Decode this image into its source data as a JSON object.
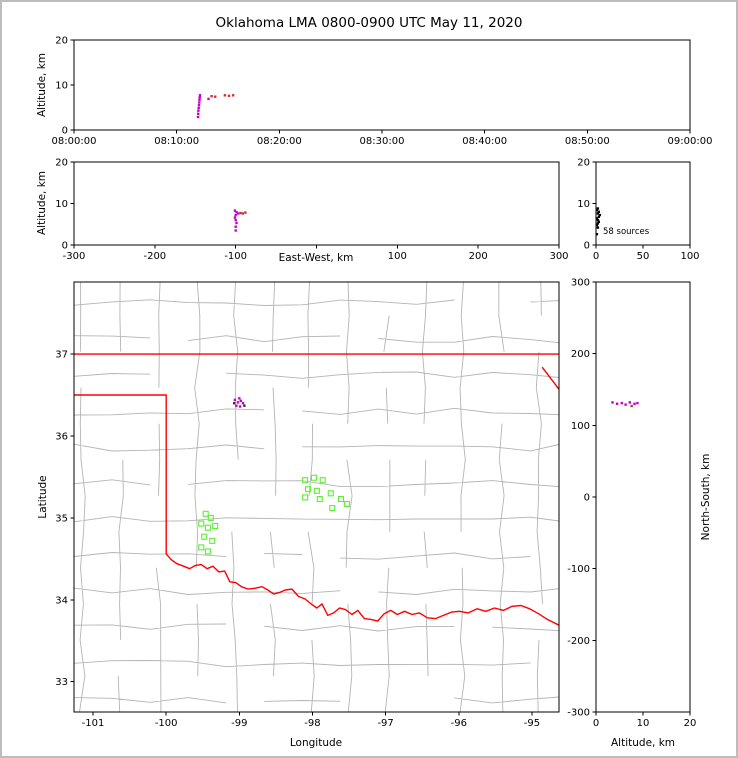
{
  "title": "Oklahoma LMA 0800-0900 UTC May 11, 2020",
  "frame": {
    "border_color": "#bdbdbd",
    "background": "#ffffff"
  },
  "colors": {
    "axis": "#000000",
    "county_line": "#b4b4b4",
    "state_border": "#ff0000",
    "station_marker": "#5dee35",
    "source_primary": "#c800c8",
    "source_secondary": "#cd3333",
    "histogram_point": "#000000"
  },
  "chart_data": [
    {
      "name": "time-height",
      "type": "scatter",
      "ylabel": "Altitude, km",
      "xlim": [
        0,
        60
      ],
      "ylim": [
        0,
        20
      ],
      "yticks": [
        0,
        10,
        20
      ],
      "xticks": [
        {
          "v": 0,
          "label": "08:00:00"
        },
        {
          "v": 10,
          "label": "08:10:00"
        },
        {
          "v": 20,
          "label": "08:20:00"
        },
        {
          "v": 30,
          "label": "08:30:00"
        },
        {
          "v": 40,
          "label": "08:40:00"
        },
        {
          "v": 50,
          "label": "08:50:00"
        },
        {
          "v": 60,
          "label": "09:00:00"
        }
      ],
      "series": [
        {
          "color": "#c800c8",
          "points": [
            [
              12.08,
              2.9
            ],
            [
              12.1,
              3.6
            ],
            [
              12.12,
              4.3
            ],
            [
              12.15,
              4.9
            ],
            [
              12.18,
              5.5
            ],
            [
              12.2,
              6.1
            ],
            [
              12.22,
              6.7
            ],
            [
              12.24,
              7.2
            ],
            [
              12.27,
              7.7
            ],
            [
              13.1,
              6.9
            ]
          ]
        },
        {
          "color": "#cd3333",
          "points": [
            [
              13.4,
              7.5
            ],
            [
              13.75,
              7.4
            ],
            [
              14.7,
              7.7
            ],
            [
              15.1,
              7.6
            ],
            [
              15.5,
              7.7
            ]
          ]
        }
      ]
    },
    {
      "name": "ew-height",
      "type": "scatter",
      "xlabel": "East-West, km",
      "ylabel": "Altitude, km",
      "xlim": [
        -300,
        300
      ],
      "ylim": [
        0,
        20
      ],
      "yticks": [
        0,
        10,
        20
      ],
      "xticks": [
        {
          "v": -300,
          "label": "-300"
        },
        {
          "v": -200,
          "label": "-200"
        },
        {
          "v": -100,
          "label": "-100"
        },
        {
          "v": 0,
          "label": ""
        },
        {
          "v": 100,
          "label": "100"
        },
        {
          "v": 200,
          "label": "200"
        },
        {
          "v": 300,
          "label": "300"
        }
      ],
      "series": [
        {
          "color": "#c800c8",
          "points": [
            [
              -101,
              8.3
            ],
            [
              -99,
              7.9
            ],
            [
              -97,
              7.6
            ],
            [
              -100,
              7.2
            ],
            [
              -101,
              6.6
            ],
            [
              -100,
              6.0
            ],
            [
              -99,
              5.3
            ],
            [
              -100,
              4.4
            ],
            [
              -100,
              3.5
            ]
          ]
        },
        {
          "color": "#cd3333",
          "points": [
            [
              -94,
              7.7
            ],
            [
              -91,
              7.6
            ],
            [
              -88,
              7.8
            ]
          ]
        }
      ]
    },
    {
      "name": "altitude-histogram",
      "type": "scatter",
      "annotation": "58 sources",
      "xlim": [
        0,
        100
      ],
      "ylim": [
        0,
        20
      ],
      "xticks": [
        0,
        50,
        100
      ],
      "yticks": [
        0,
        10,
        20
      ],
      "series": [
        {
          "color": "#000000",
          "points": [
            [
              2,
              8.8
            ],
            [
              1,
              8.4
            ],
            [
              3,
              8.0
            ],
            [
              2,
              7.6
            ],
            [
              4,
              7.2
            ],
            [
              3,
              6.8
            ],
            [
              1,
              6.4
            ],
            [
              2,
              6.0
            ],
            [
              3,
              5.6
            ],
            [
              2,
              5.2
            ],
            [
              1,
              4.8
            ],
            [
              2,
              4.2
            ],
            [
              1,
              2.6
            ]
          ]
        }
      ]
    },
    {
      "name": "plan-view-map",
      "type": "scatter",
      "xlabel": "Longitude",
      "ylabel": "Latitude",
      "xlim": [
        -101.26,
        -94.63
      ],
      "ylim": [
        32.63,
        37.88
      ],
      "xticks": [
        -101,
        -100,
        -99,
        -98,
        -97,
        -96,
        -95
      ],
      "yticks": [
        33,
        34,
        35,
        36,
        37
      ],
      "series": [
        {
          "color": "#c800c8",
          "points": [
            [
              -99.06,
              36.44
            ],
            [
              -99.02,
              36.41
            ],
            [
              -98.98,
              36.43
            ],
            [
              -99.04,
              36.37
            ],
            [
              -98.99,
              36.36
            ],
            [
              -98.95,
              36.4
            ],
            [
              -99.0,
              36.46
            ]
          ]
        },
        {
          "color": "#333333",
          "points": [
            [
              -98.93,
              36.37
            ],
            [
              -99.07,
              36.4
            ]
          ]
        }
      ],
      "stations": [
        [
          -99.46,
          35.05
        ],
        [
          -99.39,
          35.0
        ],
        [
          -99.52,
          34.93
        ],
        [
          -99.43,
          34.88
        ],
        [
          -99.33,
          34.9
        ],
        [
          -99.48,
          34.77
        ],
        [
          -99.37,
          34.72
        ],
        [
          -99.52,
          34.64
        ],
        [
          -99.43,
          34.59
        ],
        [
          -98.1,
          35.46
        ],
        [
          -97.98,
          35.49
        ],
        [
          -97.86,
          35.46
        ],
        [
          -98.06,
          35.35
        ],
        [
          -97.94,
          35.33
        ],
        [
          -98.1,
          35.25
        ],
        [
          -97.9,
          35.23
        ],
        [
          -97.75,
          35.3
        ],
        [
          -97.61,
          35.23
        ],
        [
          -97.53,
          35.17
        ],
        [
          -97.73,
          35.12
        ]
      ],
      "basemap": {
        "state_border": [
          [
            [
              -101.26,
              37.0
            ],
            [
              -94.63,
              37.0
            ]
          ],
          [
            [
              -94.86,
              36.84
            ],
            [
              -94.63,
              36.57
            ]
          ],
          [
            [
              -101.26,
              36.5
            ],
            [
              -100.0,
              36.5
            ],
            [
              -100.0,
              34.56
            ],
            [
              -99.93,
              34.49
            ],
            [
              -99.85,
              34.44
            ],
            [
              -99.76,
              34.41
            ],
            [
              -99.68,
              34.38
            ],
            [
              -99.6,
              34.42
            ],
            [
              -99.52,
              34.43
            ],
            [
              -99.44,
              34.38
            ],
            [
              -99.36,
              34.41
            ],
            [
              -99.28,
              34.34
            ],
            [
              -99.2,
              34.35
            ],
            [
              -99.13,
              34.22
            ],
            [
              -99.05,
              34.21
            ],
            [
              -98.97,
              34.16
            ],
            [
              -98.88,
              34.13
            ],
            [
              -98.79,
              34.14
            ],
            [
              -98.69,
              34.16
            ],
            [
              -98.61,
              34.12
            ],
            [
              -98.53,
              34.07
            ],
            [
              -98.45,
              34.09
            ],
            [
              -98.37,
              34.12
            ],
            [
              -98.28,
              34.13
            ],
            [
              -98.19,
              34.04
            ],
            [
              -98.1,
              34.01
            ],
            [
              -98.02,
              33.95
            ],
            [
              -97.94,
              33.9
            ],
            [
              -97.87,
              33.95
            ],
            [
              -97.79,
              33.81
            ],
            [
              -97.71,
              33.84
            ],
            [
              -97.63,
              33.9
            ],
            [
              -97.55,
              33.88
            ],
            [
              -97.46,
              33.82
            ],
            [
              -97.38,
              33.87
            ],
            [
              -97.29,
              33.77
            ],
            [
              -97.2,
              33.76
            ],
            [
              -97.11,
              33.74
            ],
            [
              -97.02,
              33.83
            ],
            [
              -96.93,
              33.87
            ],
            [
              -96.84,
              33.82
            ],
            [
              -96.74,
              33.86
            ],
            [
              -96.64,
              33.82
            ],
            [
              -96.54,
              33.84
            ],
            [
              -96.43,
              33.78
            ],
            [
              -96.32,
              33.77
            ],
            [
              -96.21,
              33.81
            ],
            [
              -96.1,
              33.85
            ],
            [
              -95.99,
              33.86
            ],
            [
              -95.87,
              33.84
            ],
            [
              -95.75,
              33.89
            ],
            [
              -95.63,
              33.86
            ],
            [
              -95.51,
              33.9
            ],
            [
              -95.39,
              33.87
            ],
            [
              -95.27,
              33.92
            ],
            [
              -95.15,
              33.93
            ],
            [
              -95.03,
              33.89
            ],
            [
              -94.91,
              33.83
            ],
            [
              -94.79,
              33.76
            ],
            [
              -94.63,
              33.69
            ]
          ]
        ],
        "county_grid": {
          "lon_step": 0.52,
          "lat_step": 0.44,
          "lon_offset": 0.12,
          "lat_offset": 0.15,
          "jitter": 0.045,
          "skip": 0.16,
          "color": "#b4b4b4"
        }
      }
    },
    {
      "name": "ns-height",
      "type": "scatter",
      "xlabel": "Altitude, km",
      "ylabel": "North-South, km",
      "xlim": [
        0,
        20
      ],
      "ylim": [
        -300,
        300
      ],
      "xticks": [
        0,
        10,
        20
      ],
      "yticks": [
        300,
        200,
        100,
        0,
        -100,
        -200,
        -300
      ],
      "series": [
        {
          "color": "#c800c8",
          "points": [
            [
              3.5,
              132
            ],
            [
              4.5,
              130
            ],
            [
              5.5,
              131
            ],
            [
              6.3,
              129
            ],
            [
              7.2,
              132
            ],
            [
              8.2,
              130
            ],
            [
              8.8,
              131
            ]
          ]
        },
        {
          "color": "#cd3333",
          "points": [
            [
              7.6,
              127
            ]
          ]
        }
      ]
    }
  ]
}
